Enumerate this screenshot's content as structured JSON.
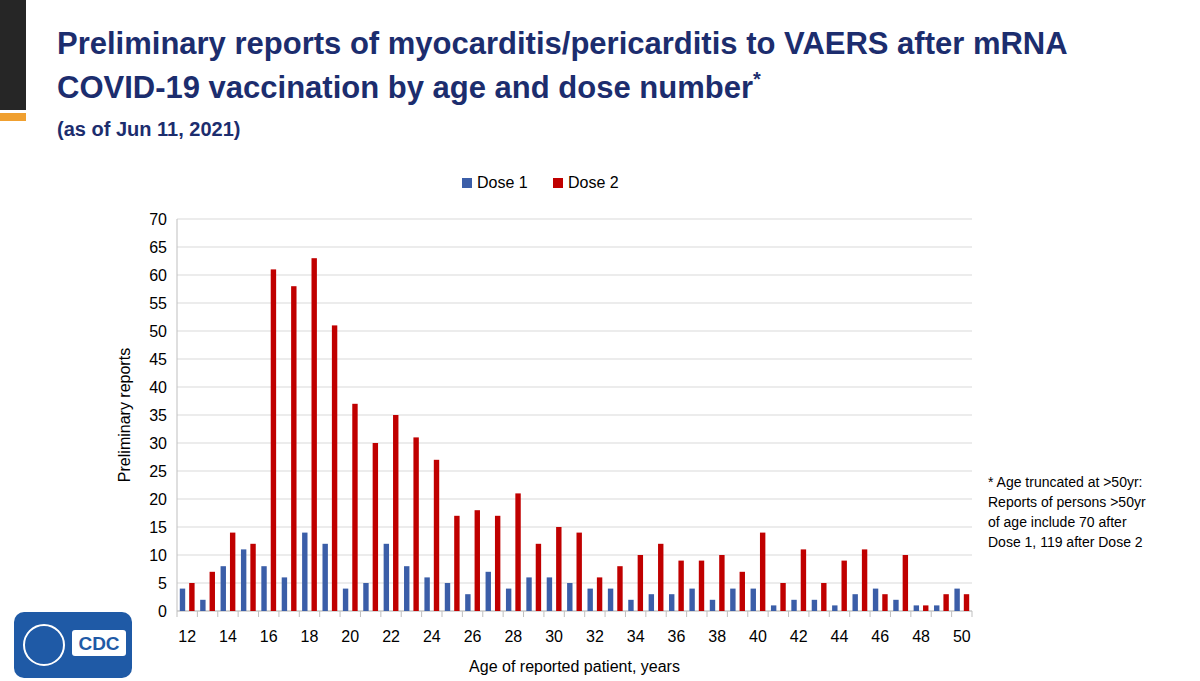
{
  "chart_data": {
    "type": "bar",
    "title": "Preliminary reports of myocarditis/pericarditis to VAERS after mRNA COVID-19 vaccination by age and dose number*",
    "subtitle": "(as of Jun 11, 2021)",
    "x_label": "Age of reported patient, years",
    "y_label": "Preliminary reports",
    "annotations": [
      "* Age truncated at >50yr:",
      "Reports of persons >50yr",
      "of age include 70 after",
      "Dose 1, 119 after Dose 2"
    ],
    "logo": "CDC",
    "categories": [
      12,
      null,
      14,
      null,
      16,
      null,
      18,
      null,
      20,
      null,
      22,
      null,
      24,
      null,
      26,
      null,
      28,
      null,
      30,
      null,
      32,
      null,
      34,
      null,
      36,
      null,
      38,
      null,
      40,
      null,
      42,
      null,
      44,
      null,
      46,
      null,
      48,
      null,
      50
    ],
    "series": [
      {
        "name": "Dose 1",
        "color": "#3b5ea8",
        "values": [
          4,
          2,
          8,
          11,
          8,
          6,
          14,
          12,
          4,
          5,
          12,
          8,
          6,
          5,
          3,
          7,
          4,
          6,
          6,
          5,
          4,
          4,
          2,
          3,
          3,
          4,
          2,
          4,
          4,
          1,
          2,
          2,
          1,
          3,
          4,
          2,
          1,
          1,
          4
        ]
      },
      {
        "name": "Dose 2",
        "color": "#c00000",
        "values": [
          5,
          7,
          14,
          12,
          61,
          58,
          63,
          51,
          37,
          30,
          35,
          31,
          27,
          17,
          18,
          17,
          21,
          12,
          15,
          14,
          6,
          8,
          10,
          12,
          9,
          9,
          10,
          7,
          14,
          5,
          11,
          5,
          9,
          11,
          3,
          10,
          1,
          3,
          3
        ]
      }
    ],
    "ylim": [
      0,
      70
    ],
    "yticks": [
      0,
      5,
      10,
      15,
      20,
      25,
      30,
      35,
      40,
      45,
      50,
      55,
      60,
      65,
      70
    ],
    "grid": true,
    "legend": "top"
  }
}
